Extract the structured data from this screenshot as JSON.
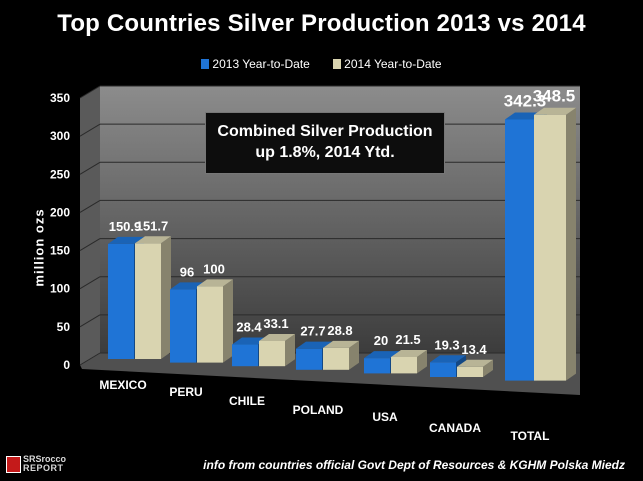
{
  "chart_data": {
    "type": "bar",
    "title": "Top Countries Silver Production 2013 vs 2014",
    "ylabel": "million ozs",
    "xlabel": "",
    "ylim": [
      0,
      350
    ],
    "yticks": [
      "0",
      "50",
      "100",
      "150",
      "200",
      "250",
      "300",
      "350"
    ],
    "categories": [
      "MEXICO",
      "PERU",
      "CHILE",
      "POLAND",
      "USA",
      "CANADA",
      "TOTAL"
    ],
    "series": [
      {
        "name": "2013 Year-to-Date",
        "color": "#1f74d6",
        "values": [
          150.9,
          96,
          28.4,
          27.7,
          20,
          19.3,
          342.3
        ],
        "labels": [
          "150.9",
          "96",
          "28.4",
          "27.7",
          "20",
          "19.3",
          "342.3"
        ]
      },
      {
        "name": "2014 Year-to-Date",
        "color": "#d9d4b0",
        "values": [
          151.7,
          100,
          33.1,
          28.8,
          21.5,
          13.4,
          348.5
        ],
        "labels": [
          "151.7",
          "100",
          "33.1",
          "28.8",
          "21.5",
          "13.4",
          "348.5"
        ]
      }
    ],
    "legend_position": "top-center",
    "annotation": {
      "line1": "Combined Silver Production",
      "line2": "up 1.8%, 2014 Ytd."
    }
  },
  "source": "info from countries official Govt Dept of Resources & KGHM Polska Miedz",
  "logo": {
    "line1": "SRSrocco",
    "line2": "REPORT"
  }
}
